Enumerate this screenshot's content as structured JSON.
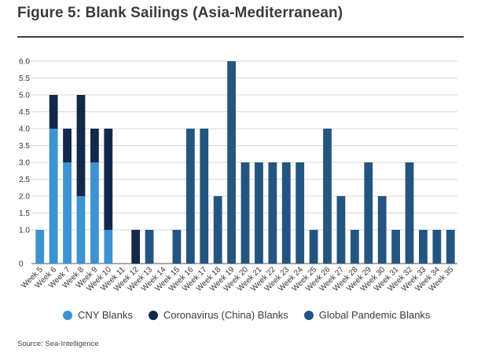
{
  "title": "Figure 5: Blank Sailings (Asia-Mediterranean)",
  "source": "Source: Sea-Intelligence",
  "colors": {
    "cny": "#3d93cf",
    "coronavirus": "#13294b",
    "pandemic": "#245580",
    "grid": "#d9d9d9",
    "axis": "#555555"
  },
  "legend": [
    {
      "label": "CNY Blanks",
      "color": "#3d93cf"
    },
    {
      "label": "Coronavirus (China) Blanks",
      "color": "#13294b"
    },
    {
      "label": "Global Pandemic Blanks",
      "color": "#245580"
    }
  ],
  "chart_data": {
    "type": "bar",
    "stacked": true,
    "title": "Figure 5: Blank Sailings (Asia-Mediterranean)",
    "xlabel": "",
    "ylabel": "",
    "ylim": [
      0,
      6
    ],
    "yticks": [
      "0",
      "1.0",
      "1.5",
      "2.0",
      "2.5",
      "3.0",
      "3.5",
      "4.0",
      "4.5",
      "5.0",
      "5.5",
      "6.0"
    ],
    "grid": true,
    "legend_position": "bottom",
    "categories": [
      "Week 5",
      "Week 6",
      "Week 7",
      "Week 8",
      "Week 9",
      "Week 10",
      "Week 11",
      "Week 12",
      "Week 13",
      "Week 14",
      "Week 15",
      "Week 16",
      "Week 17",
      "Week 18",
      "Week 19",
      "Week 20",
      "Week 21",
      "Week 22",
      "Week 23",
      "Week 24",
      "Week 25",
      "Week 26",
      "Week 27",
      "Week 28",
      "Week 29",
      "Week 30",
      "Week 31",
      "Week 32",
      "Week 33",
      "Week 34",
      "Week 35"
    ],
    "series": [
      {
        "name": "CNY Blanks",
        "color": "#3d93cf",
        "values": [
          1,
          4,
          3,
          2,
          3,
          1,
          0,
          0,
          0,
          0,
          0,
          0,
          0,
          0,
          0,
          0,
          0,
          0,
          0,
          0,
          0,
          0,
          0,
          0,
          0,
          0,
          0,
          0,
          0,
          0,
          0
        ]
      },
      {
        "name": "Coronavirus (China) Blanks",
        "color": "#13294b",
        "values": [
          0,
          1,
          1,
          3,
          1,
          3,
          0,
          1,
          0,
          0,
          0,
          0,
          0,
          0,
          0,
          0,
          0,
          0,
          0,
          0,
          0,
          0,
          0,
          0,
          0,
          0,
          0,
          0,
          0,
          0,
          0
        ]
      },
      {
        "name": "Global Pandemic Blanks",
        "color": "#245580",
        "values": [
          0,
          0,
          0,
          0,
          0,
          0,
          0,
          0,
          1,
          0,
          1,
          4,
          4,
          2,
          6,
          3,
          3,
          3,
          3,
          3,
          1,
          4,
          2,
          1,
          3,
          2,
          1,
          3,
          1,
          1,
          1
        ]
      }
    ]
  }
}
